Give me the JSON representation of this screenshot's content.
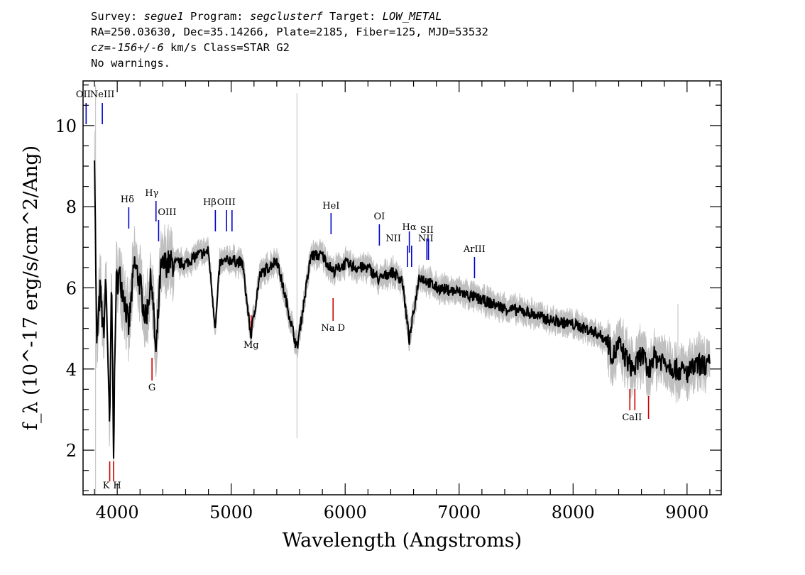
{
  "header": {
    "line1": {
      "p1": "Survey: ",
      "survey": "segue1",
      "p2": " Program: ",
      "program": "segclusterf",
      "p3": " Target: ",
      "target": "LOW_METAL"
    },
    "line2": "RA=250.03630, Dec=35.14266, Plate=2185, Fiber=125, MJD=53532",
    "line3": {
      "cz": "cz=-156+/-6",
      "rest": " km/s Class=STAR G2"
    },
    "line4": "No warnings."
  },
  "colors": {
    "flux": "#000000",
    "error": "#bfbfbf",
    "emission": "#0000cc",
    "absorption": "#cc0000"
  },
  "chart_data": {
    "type": "line",
    "xlabel": "Wavelength (Angstroms)",
    "ylabel": "f_λ (10^-17 erg/s/cm^2/Ang)",
    "xlim": [
      3700,
      9300
    ],
    "ylim": [
      0.9,
      11.1
    ],
    "xticks": [
      4000,
      5000,
      6000,
      7000,
      8000,
      9000
    ],
    "yticks": [
      2,
      4,
      6,
      8,
      10
    ],
    "series": [
      {
        "x": [
          3800,
          3820,
          3850,
          3880,
          3900,
          3920,
          3933,
          3950,
          3968,
          3990,
          4020,
          4060,
          4101,
          4150,
          4200,
          4250,
          4300,
          4340,
          4380,
          4420,
          4500,
          4600,
          4700,
          4800,
          4861,
          4900,
          5000,
          5100,
          5172,
          5250,
          5400,
          5577,
          5700,
          5800,
          5893,
          6000,
          6100,
          6200,
          6300,
          6400,
          6500,
          6563,
          6650,
          6800,
          7000,
          7200,
          7400,
          7600,
          7800,
          8000,
          8200,
          8300,
          8350,
          8400,
          8498,
          8542,
          8600,
          8662,
          8700,
          8800,
          8900,
          9000,
          9100,
          9200
        ],
        "y": [
          9.5,
          4.5,
          6.0,
          4.8,
          6.2,
          4.2,
          2.3,
          6.2,
          2.1,
          6.1,
          6.3,
          5.8,
          5.0,
          6.6,
          6.1,
          5.2,
          6.3,
          4.3,
          6.4,
          6.6,
          6.6,
          6.6,
          6.8,
          6.9,
          5.0,
          6.6,
          6.7,
          6.6,
          4.8,
          6.3,
          6.7,
          4.5,
          6.8,
          6.8,
          6.4,
          6.6,
          6.5,
          6.5,
          6.2,
          6.4,
          6.2,
          4.7,
          6.3,
          6.0,
          5.9,
          5.7,
          5.5,
          5.4,
          5.2,
          5.1,
          4.9,
          4.7,
          4.3,
          4.6,
          4.1,
          4.0,
          4.4,
          3.9,
          4.3,
          4.2,
          4.0,
          3.9,
          4.1,
          4.1
        ]
      }
    ],
    "line_labels": [
      {
        "label": "OII",
        "x": 3727,
        "kind": "emission"
      },
      {
        "label": "NeIII",
        "x": 3869,
        "kind": "emission"
      },
      {
        "label": "Hδ",
        "x": 4101,
        "kind": "emission"
      },
      {
        "label": "Hγ",
        "x": 4340,
        "kind": "emission"
      },
      {
        "label": "OIII",
        "x": 4363,
        "kind": "emission"
      },
      {
        "label": "Hβ",
        "x": 4861,
        "kind": "emission"
      },
      {
        "label": "OIII",
        "x": 4959,
        "kind": "emission"
      },
      {
        "label": "OIII",
        "x": 5007,
        "kind": "emission"
      },
      {
        "label": "HeI",
        "x": 5876,
        "kind": "emission"
      },
      {
        "label": "OI",
        "x": 6300,
        "kind": "emission"
      },
      {
        "label": "NII",
        "x": 6548,
        "kind": "emission"
      },
      {
        "label": "Hα",
        "x": 6563,
        "kind": "emission"
      },
      {
        "label": "NII",
        "x": 6583,
        "kind": "emission"
      },
      {
        "label": "SII",
        "x": 6717,
        "kind": "emission"
      },
      {
        "label": "SII",
        "x": 6731,
        "kind": "emission"
      },
      {
        "label": "ArIII",
        "x": 7135,
        "kind": "emission"
      },
      {
        "label": "K",
        "x": 3934,
        "kind": "absorption"
      },
      {
        "label": "H",
        "x": 3968,
        "kind": "absorption"
      },
      {
        "label": "G",
        "x": 4305,
        "kind": "absorption"
      },
      {
        "label": "Mg",
        "x": 5175,
        "kind": "absorption"
      },
      {
        "label": "Na D",
        "x": 5894,
        "kind": "absorption"
      },
      {
        "label": "CaII",
        "x": 8498,
        "kind": "absorption"
      },
      {
        "label": "CaII",
        "x": 8542,
        "kind": "absorption"
      },
      {
        "label": "CaII",
        "x": 8662,
        "kind": "absorption"
      }
    ]
  }
}
